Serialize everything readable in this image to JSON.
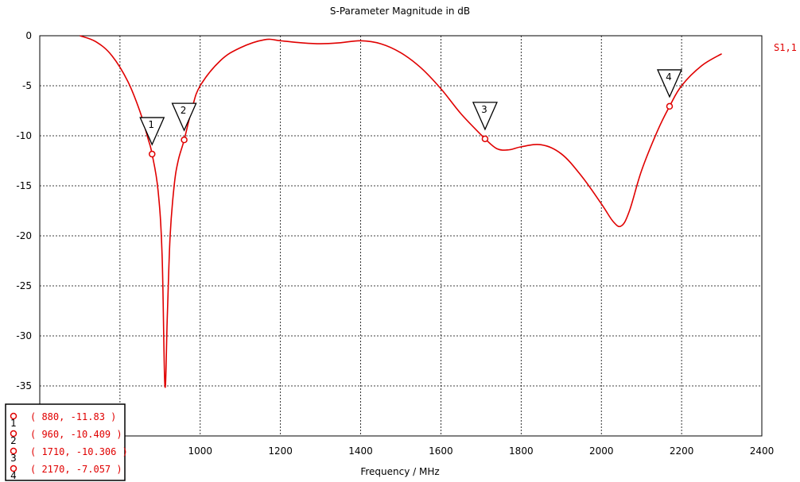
{
  "chart_data": {
    "type": "line",
    "title": "S-Parameter Magnitude in dB",
    "xlabel": "Frequency / MHz",
    "ylabel": "",
    "xlim": [
      600,
      2400
    ],
    "ylim": [
      -40,
      0
    ],
    "x_ticks": [
      "",
      "1000",
      "1200",
      "1400",
      "1600",
      "1800",
      "2000",
      "2200",
      "2400"
    ],
    "y_ticks": [
      "0",
      "-5",
      "-10",
      "-15",
      "-20",
      "-25",
      "-30",
      "-35"
    ],
    "grid": true,
    "series": [
      {
        "name": "S1,1",
        "color": "#e00000",
        "x": [
          700,
          740,
          780,
          820,
          850,
          870,
          880,
          895,
          905,
          912,
          918,
          925,
          935,
          945,
          960,
          980,
          1000,
          1050,
          1100,
          1160,
          1200,
          1250,
          1300,
          1350,
          1400,
          1450,
          1500,
          1550,
          1600,
          1650,
          1700,
          1710,
          1740,
          1770,
          1800,
          1850,
          1900,
          1950,
          2000,
          2030,
          2050,
          2070,
          2100,
          2140,
          2170,
          2200,
          2250,
          2300
        ],
        "y": [
          0,
          -0.6,
          -2.0,
          -4.6,
          -7.6,
          -10.3,
          -11.83,
          -15.5,
          -22,
          -35,
          -28,
          -20,
          -15,
          -12.5,
          -10.409,
          -7.2,
          -5.0,
          -2.5,
          -1.2,
          -0.4,
          -0.5,
          -0.7,
          -0.8,
          -0.7,
          -0.5,
          -0.8,
          -1.7,
          -3.2,
          -5.3,
          -7.8,
          -9.9,
          -10.306,
          -11.3,
          -11.4,
          -11.1,
          -10.9,
          -11.8,
          -14.0,
          -16.8,
          -18.6,
          -19.0,
          -17.5,
          -13.5,
          -9.5,
          -7.057,
          -5.0,
          -3.0,
          -1.8
        ]
      }
    ],
    "markers": [
      {
        "id": "1",
        "x": 880,
        "y": -11.83,
        "label": "( 880, -11.83 )"
      },
      {
        "id": "2",
        "x": 960,
        "y": -10.409,
        "label": "( 960, -10.409 )"
      },
      {
        "id": "3",
        "x": 1710,
        "y": -10.306,
        "label": "( 1710, -10.306 )"
      },
      {
        "id": "4",
        "x": 2170,
        "y": -7.057,
        "label": "( 2170, -7.057 )"
      }
    ],
    "legend_placement": "bottom-left"
  }
}
